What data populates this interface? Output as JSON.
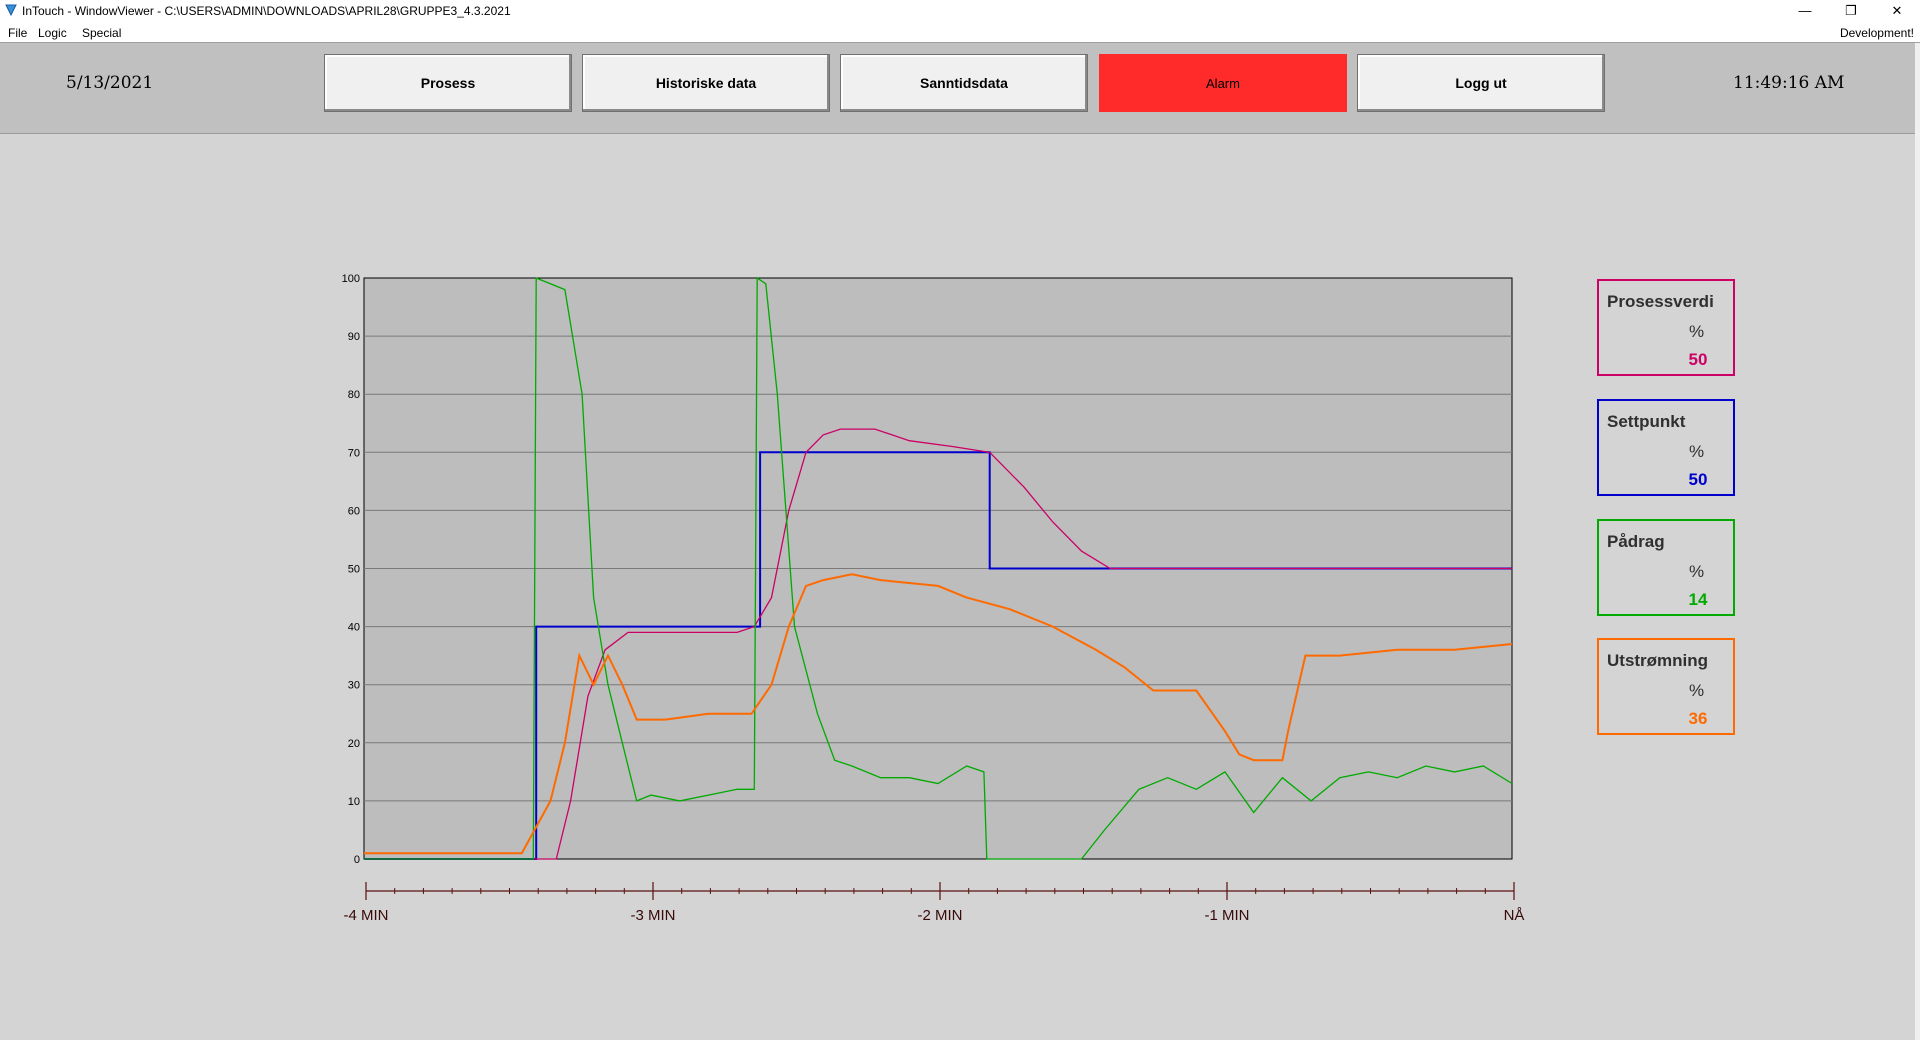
{
  "window": {
    "title": "InTouch - WindowViewer - C:\\USERS\\ADMIN\\DOWNLOADS\\APRIL28\\GRUPPE3_4.3.2021",
    "minimize_glyph": "—",
    "restore_glyph": "❐",
    "close_glyph": "✕"
  },
  "menu": {
    "items": [
      "File",
      "Logic",
      "Special"
    ],
    "right_label": "Development!"
  },
  "header": {
    "date": "5/13/2021",
    "time": "11:49:16 AM",
    "buttons": [
      "Prosess",
      "Historiske data",
      "Sanntidsdata",
      "Alarm",
      "Logg ut"
    ],
    "alarm_color": "#ff2a2a"
  },
  "legend": [
    {
      "name": "Prosessverdi",
      "unit": "%",
      "value": "50",
      "color": "#cc0066"
    },
    {
      "name": "Settpunkt",
      "unit": "%",
      "value": "50",
      "color": "#0000cc"
    },
    {
      "name": "Pådrag",
      "unit": "%",
      "value": "14",
      "color": "#00aa00"
    },
    {
      "name": "Utstrømning",
      "unit": "%",
      "value": "36",
      "color": "#ff6a00"
    }
  ],
  "chart_data": {
    "type": "line",
    "y_ticks": [
      "100",
      "90",
      "80",
      "70",
      "60",
      "50",
      "40",
      "30",
      "20",
      "10",
      "0"
    ],
    "ylim": [
      0,
      100
    ],
    "xlim": [
      -4,
      0
    ],
    "x_tick_labels": [
      "-4 MIN",
      "-3 MIN",
      "-2 MIN",
      "-1 MIN",
      "NÅ"
    ],
    "x_tick_values": [
      -4,
      -3,
      -2,
      -1,
      0
    ],
    "grid": true,
    "series": [
      {
        "name": "Settpunkt",
        "color": "#0000cc",
        "x": [
          -4.0,
          -3.4,
          -3.4,
          -2.62,
          -2.62,
          -1.82,
          -1.82,
          0.0
        ],
        "y": [
          0,
          0,
          40,
          40,
          70,
          70,
          50,
          50
        ]
      },
      {
        "name": "Prosessverdi",
        "color": "#cc0066",
        "x": [
          -4.0,
          -3.33,
          -3.28,
          -3.22,
          -3.16,
          -3.08,
          -3.0,
          -2.9,
          -2.8,
          -2.7,
          -2.64,
          -2.58,
          -2.52,
          -2.46,
          -2.4,
          -2.34,
          -2.3,
          -2.22,
          -2.1,
          -1.95,
          -1.82,
          -1.7,
          -1.6,
          -1.5,
          -1.4,
          -1.2,
          -1.0,
          -0.8,
          -0.6,
          -0.4,
          -0.2,
          0.0
        ],
        "y": [
          0,
          0,
          10,
          28,
          36,
          39,
          39,
          39,
          39,
          39,
          40,
          45,
          60,
          70,
          73,
          74,
          74,
          74,
          72,
          71,
          70,
          64,
          58,
          53,
          50,
          50,
          50,
          50,
          50,
          50,
          50,
          50
        ]
      },
      {
        "name": "Pådrag",
        "color": "#00aa00",
        "x": [
          -4.0,
          -3.41,
          -3.4,
          -3.3,
          -3.24,
          -3.2,
          -3.15,
          -3.1,
          -3.05,
          -3.0,
          -2.9,
          -2.8,
          -2.7,
          -2.64,
          -2.63,
          -2.6,
          -2.56,
          -2.5,
          -2.42,
          -2.36,
          -2.3,
          -2.2,
          -2.1,
          -2.0,
          -1.9,
          -1.84,
          -1.83,
          -1.6,
          -1.5,
          -1.42,
          -1.3,
          -1.2,
          -1.1,
          -1.0,
          -0.9,
          -0.8,
          -0.7,
          -0.6,
          -0.5,
          -0.4,
          -0.3,
          -0.2,
          -0.1,
          0.0
        ],
        "y": [
          0,
          0,
          100,
          98,
          80,
          45,
          30,
          20,
          10,
          11,
          10,
          11,
          12,
          12,
          100,
          99,
          80,
          40,
          25,
          17,
          16,
          14,
          14,
          13,
          16,
          15,
          0,
          0,
          0,
          5,
          12,
          14,
          12,
          15,
          8,
          14,
          10,
          14,
          15,
          14,
          16,
          15,
          16,
          13
        ]
      },
      {
        "name": "Utstrømning",
        "color": "#ff6a00",
        "x": [
          -4.0,
          -3.45,
          -3.35,
          -3.3,
          -3.25,
          -3.2,
          -3.15,
          -3.1,
          -3.05,
          -2.95,
          -2.8,
          -2.65,
          -2.58,
          -2.52,
          -2.46,
          -2.4,
          -2.3,
          -2.2,
          -2.0,
          -1.9,
          -1.75,
          -1.6,
          -1.45,
          -1.35,
          -1.25,
          -1.2,
          -1.1,
          -1.0,
          -0.95,
          -0.9,
          -0.8,
          -0.78,
          -0.72,
          -0.6,
          -0.4,
          -0.2,
          0.0
        ],
        "y": [
          1,
          1,
          10,
          20,
          35,
          30,
          35,
          30,
          24,
          24,
          25,
          25,
          30,
          40,
          47,
          48,
          49,
          48,
          47,
          45,
          43,
          40,
          36,
          33,
          29,
          29,
          29,
          22,
          18,
          17,
          17,
          22,
          35,
          35,
          36,
          36,
          37
        ]
      }
    ]
  }
}
